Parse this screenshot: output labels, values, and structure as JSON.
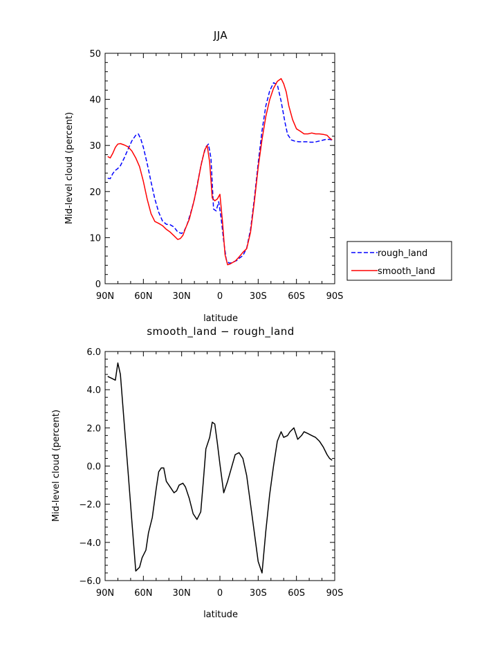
{
  "chart_data": [
    {
      "type": "line",
      "title": "JJA",
      "xlabel": "latitude",
      "ylabel": "Mid-level cloud (percent)",
      "xlim": [
        90,
        -90
      ],
      "ylim": [
        0,
        50
      ],
      "xticks": [
        90,
        60,
        30,
        0,
        -30,
        -60,
        -90
      ],
      "xtick_labels": [
        "90N",
        "60N",
        "30N",
        "0",
        "30S",
        "60S",
        "90S"
      ],
      "yticks": [
        0,
        10,
        20,
        30,
        40,
        50
      ],
      "ytick_labels": [
        "0",
        "10",
        "20",
        "30",
        "40",
        "50"
      ],
      "legend_position": "right",
      "series": [
        {
          "name": "rough_land",
          "color": "#0000ff",
          "dash": "dashed",
          "x": [
            88,
            86,
            84,
            82,
            80,
            78,
            75,
            72,
            69,
            66,
            64,
            62,
            60,
            57,
            54,
            51,
            48,
            45,
            42,
            39,
            36,
            33,
            30,
            28,
            26,
            23,
            20,
            17,
            14,
            11,
            9,
            7,
            5,
            3,
            1,
            -1,
            -3,
            -5,
            -7,
            -9,
            -11,
            -13,
            -15,
            -18,
            -21,
            -24,
            -27,
            -30,
            -33,
            -36,
            -39,
            -42,
            -45,
            -48,
            -51,
            -53,
            -56,
            -59,
            -62,
            -65,
            -68,
            -71,
            -74,
            -77,
            -80,
            -83,
            -86,
            -88
          ],
          "y": [
            22.9,
            22.8,
            23.9,
            24.6,
            25.0,
            25.6,
            27.3,
            29.2,
            31.0,
            32.2,
            32.5,
            31.4,
            29.6,
            26.0,
            22.1,
            18.4,
            15.5,
            13.6,
            12.9,
            12.8,
            12.3,
            11.2,
            10.9,
            11.5,
            12.6,
            15.3,
            18.3,
            22.6,
            26.8,
            29.7,
            30.3,
            27.2,
            16.2,
            15.8,
            17.8,
            14.2,
            9.2,
            5.2,
            4.5,
            4.5,
            4.8,
            5.0,
            5.5,
            6.1,
            7.7,
            11.8,
            18.5,
            26.1,
            33.2,
            38.6,
            41.8,
            43.6,
            43.2,
            39.6,
            35.0,
            32.4,
            31.2,
            30.9,
            30.8,
            30.8,
            30.8,
            30.7,
            30.7,
            30.9,
            31.1,
            31.3,
            31.3,
            31.2
          ]
        },
        {
          "name": "smooth_land",
          "color": "#ff0000",
          "dash": "solid",
          "x": [
            88,
            86,
            84,
            82,
            80,
            78,
            75,
            72,
            69,
            66,
            63,
            60,
            57,
            54,
            51,
            48,
            45,
            42,
            39,
            36,
            33,
            31,
            29,
            27,
            24,
            21,
            18,
            15,
            12,
            10,
            8,
            6,
            4,
            2,
            0,
            -2,
            -4,
            -6,
            -8,
            -10,
            -12,
            -15,
            -18,
            -21,
            -24,
            -27,
            -30,
            -33,
            -36,
            -39,
            -42,
            -45,
            -48,
            -50,
            -52,
            -54,
            -57,
            -60,
            -63,
            -66,
            -69,
            -72,
            -75,
            -78,
            -81,
            -84,
            -86,
            -88
          ],
          "y": [
            27.6,
            27.3,
            28.3,
            29.6,
            30.3,
            30.4,
            30.1,
            29.7,
            28.8,
            27.3,
            25.4,
            22.2,
            18.3,
            15.2,
            13.5,
            13.1,
            12.6,
            11.8,
            11.2,
            10.4,
            9.6,
            9.8,
            10.5,
            12.0,
            14.0,
            17.2,
            20.9,
            25.4,
            29.0,
            30.0,
            26.3,
            18.6,
            18.0,
            18.4,
            19.4,
            13.5,
            6.3,
            4.1,
            4.3,
            4.6,
            4.9,
            5.8,
            6.8,
            7.6,
            11.2,
            17.8,
            25.2,
            31.3,
            36.3,
            39.9,
            42.4,
            43.9,
            44.5,
            43.4,
            41.6,
            38.6,
            35.6,
            33.6,
            33.1,
            32.5,
            32.5,
            32.7,
            32.5,
            32.5,
            32.4,
            32.2,
            31.6,
            31.2
          ]
        }
      ]
    },
    {
      "type": "line",
      "title": "smooth_land − rough_land",
      "xlabel": "latitude",
      "ylabel": "Mid-level cloud (percent)",
      "xlim": [
        90,
        -90
      ],
      "ylim": [
        -6,
        6
      ],
      "xticks": [
        90,
        60,
        30,
        0,
        -30,
        -60,
        -90
      ],
      "xtick_labels": [
        "90N",
        "60N",
        "30N",
        "0",
        "30S",
        "60S",
        "90S"
      ],
      "yticks": [
        -6,
        -4,
        -2,
        0,
        2,
        4,
        6
      ],
      "ytick_labels": [
        "−6.0",
        "−4.0",
        "−2.0",
        "0.0",
        "2.0",
        "4.0",
        "6.0"
      ],
      "series": [
        {
          "color": "#000000",
          "dash": "solid",
          "x": [
            88,
            85,
            82,
            80,
            78,
            75,
            72,
            69,
            66,
            63,
            61,
            58,
            56,
            53,
            50,
            48,
            46,
            44,
            42,
            39,
            36,
            34,
            32,
            29,
            27,
            24,
            21,
            18,
            15,
            13,
            11,
            8,
            6,
            4,
            2,
            0,
            -3,
            -6,
            -9,
            -12,
            -15,
            -18,
            -21,
            -24,
            -27,
            -30,
            -33,
            -36,
            -39,
            -42,
            -45,
            -48,
            -50,
            -53,
            -55,
            -58,
            -61,
            -64,
            -66,
            -69,
            -72,
            -75,
            -78,
            -81,
            -84,
            -86,
            -88
          ],
          "y": [
            4.7,
            4.6,
            4.5,
            5.4,
            4.8,
            2.2,
            -0.3,
            -2.9,
            -5.5,
            -5.3,
            -4.8,
            -4.4,
            -3.5,
            -2.7,
            -1.2,
            -0.3,
            -0.1,
            -0.1,
            -0.8,
            -1.1,
            -1.4,
            -1.3,
            -1.0,
            -0.9,
            -1.1,
            -1.7,
            -2.5,
            -2.8,
            -2.4,
            -0.8,
            0.9,
            1.5,
            2.3,
            2.2,
            1.2,
            0.1,
            -1.4,
            -0.8,
            -0.1,
            0.6,
            0.7,
            0.4,
            -0.5,
            -2.0,
            -3.5,
            -5.0,
            -5.6,
            -3.4,
            -1.5,
            0.0,
            1.3,
            1.8,
            1.5,
            1.6,
            1.8,
            2.0,
            1.4,
            1.6,
            1.8,
            1.7,
            1.6,
            1.5,
            1.3,
            1.0,
            0.6,
            0.4,
            0.3
          ]
        }
      ]
    }
  ]
}
